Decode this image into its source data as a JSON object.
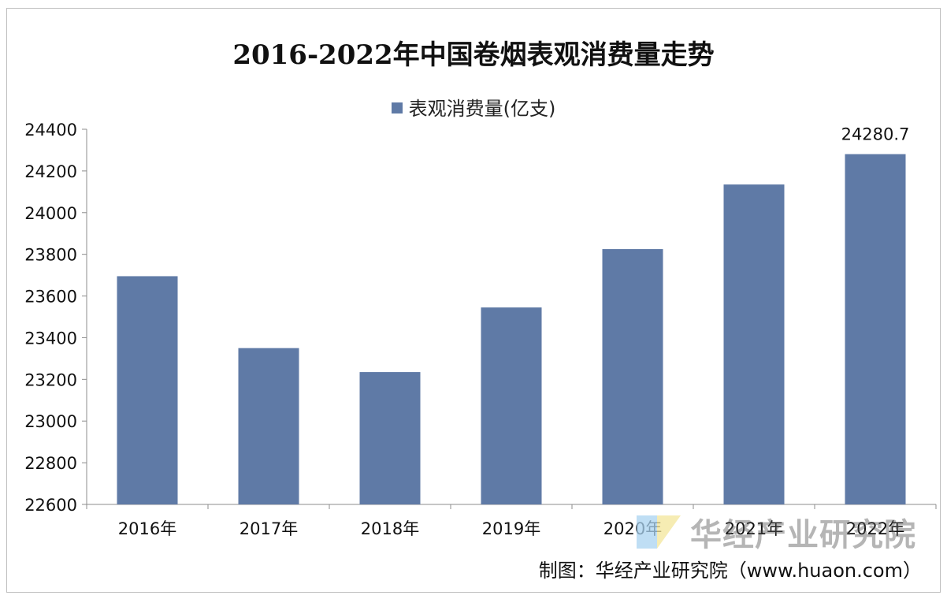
{
  "chart_data": {
    "type": "bar",
    "title": "2016-2022年中国卷烟表观消费量走势",
    "legend": {
      "label": "表观消费量(亿支)",
      "position": "top"
    },
    "categories": [
      "2016年",
      "2017年",
      "2018年",
      "2019年",
      "2020年",
      "2021年",
      "2022年"
    ],
    "series": [
      {
        "name": "表观消费量(亿支)",
        "values": [
          23695,
          23350,
          23235,
          23545,
          23825,
          24135,
          24280.7
        ],
        "color": "#5f7aa6"
      }
    ],
    "data_labels": [
      {
        "index": 6,
        "text": "24280.7"
      }
    ],
    "ylim": [
      22600,
      24400
    ],
    "yticks": [
      22600,
      22800,
      23000,
      23200,
      23400,
      23600,
      23800,
      24000,
      24200,
      24400
    ],
    "grid": false
  },
  "watermark": {
    "text": "华经产业研究院"
  },
  "source": {
    "text": "制图：华经产业研究院（www.huaon.com）"
  }
}
